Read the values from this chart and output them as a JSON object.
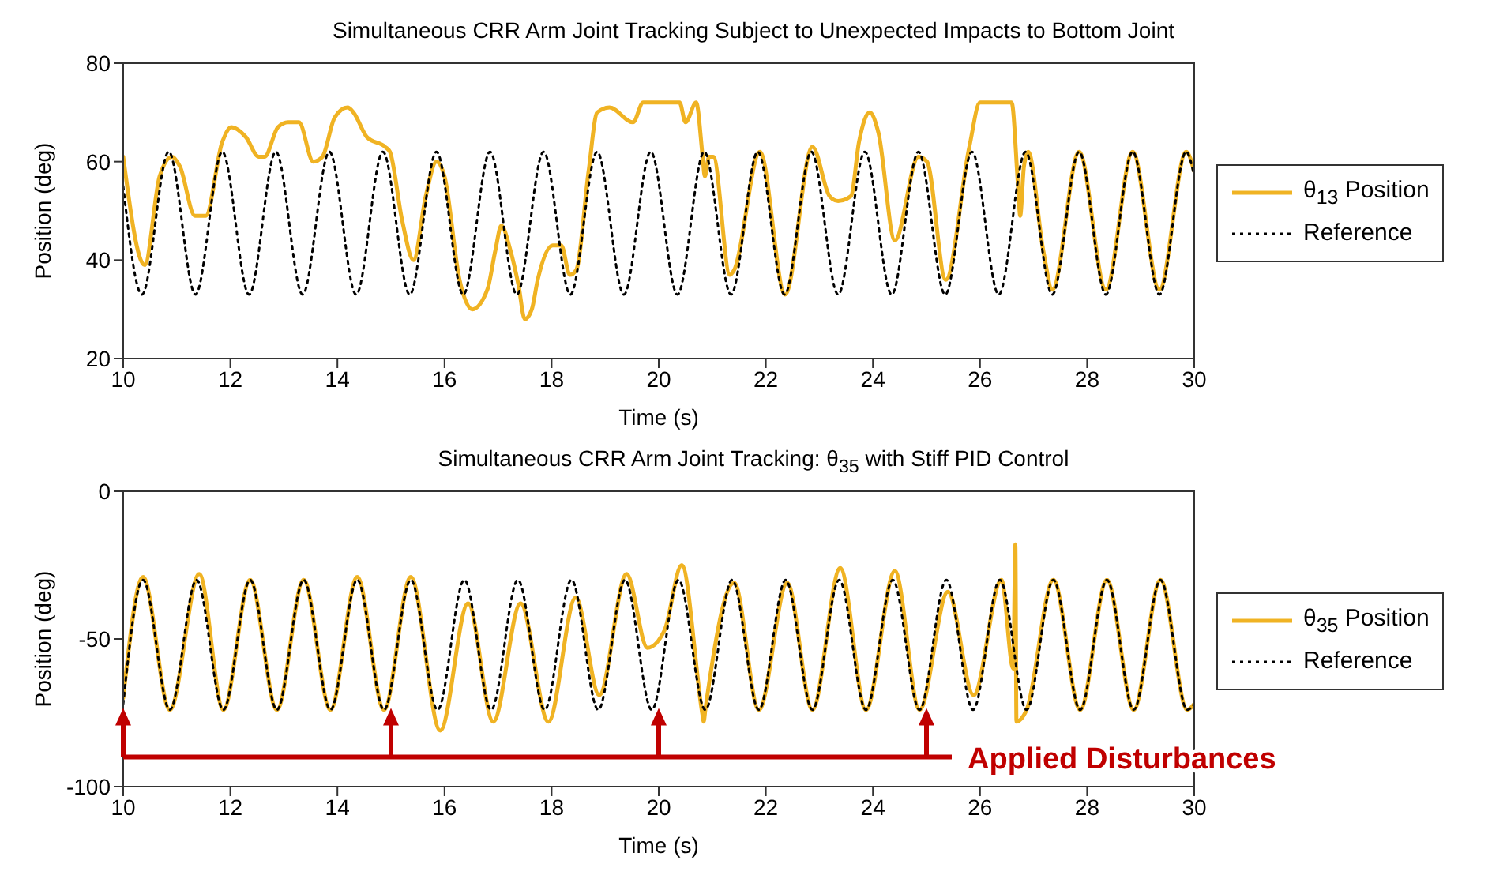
{
  "chart_data": [
    {
      "type": "line",
      "title": "Simultaneous CRR Arm Joint Tracking Subject to Unexpected Impacts to Bottom Joint",
      "xlabel": "Time (s)",
      "ylabel": "Position (deg)",
      "xlim": [
        10,
        30
      ],
      "xticks": [
        10,
        12,
        14,
        16,
        18,
        20,
        22,
        24,
        26,
        28,
        30
      ],
      "ylim": [
        20,
        80
      ],
      "yticks": [
        20,
        40,
        60,
        80
      ],
      "legend": "right",
      "series": [
        {
          "name": "θ$_{13}$ Position",
          "color": "#f0b323",
          "x": [
            10,
            10.4,
            10.68,
            10.91,
            11.06,
            11.34,
            11.54,
            11.85,
            12.02,
            12.29,
            12.53,
            12.64,
            12.89,
            13.08,
            13.28,
            13.55,
            13.72,
            13.95,
            14.19,
            14.3,
            14.55,
            14.89,
            14.98,
            15.21,
            15.42,
            15.65,
            15.85,
            16.0,
            16.28,
            16.52,
            16.8,
            16.95,
            17.06,
            17.23,
            17.38,
            17.5,
            17.63,
            17.74,
            18.02,
            18.18,
            18.34,
            18.46,
            18.69,
            18.85,
            19.08,
            19.52,
            19.71,
            20.39,
            20.5,
            20.7,
            20.82,
            20.86,
            20.94,
            21.02,
            21.33,
            21.41,
            21.89,
            22.36,
            22.87,
            23.19,
            23.35,
            23.59,
            23.74,
            23.94,
            24.1,
            24.41,
            24.85,
            25.01,
            25.36,
            25.8,
            26.0,
            26.59,
            26.71,
            26.75,
            26.82,
            26.9,
            27.18,
            27.35,
            27.85,
            28.35,
            28.85,
            29.35,
            29.85,
            30
          ],
          "values": [
            61,
            39,
            57,
            61,
            59,
            49,
            49,
            64,
            67,
            65,
            61,
            61,
            67,
            68,
            68,
            60,
            61,
            69,
            71,
            70,
            65,
            63,
            62,
            48,
            40,
            53,
            60,
            57,
            36,
            30,
            34,
            42,
            47,
            42,
            35,
            28,
            30,
            36,
            43,
            43,
            37,
            38,
            58,
            70,
            71,
            68,
            72,
            72,
            68,
            72,
            61,
            57,
            61,
            61,
            37,
            38,
            62,
            33,
            63,
            53,
            52,
            53,
            64,
            70,
            66,
            44,
            61,
            60,
            36,
            63,
            72,
            72,
            55,
            49,
            59,
            62,
            42,
            34,
            62,
            34,
            62,
            34,
            62,
            58
          ]
        },
        {
          "name": "Reference",
          "color": "#000000",
          "line_style": "dotted",
          "x": [
            10,
            10.35,
            10.85,
            11.35,
            11.85,
            12.35,
            12.85,
            13.35,
            13.85,
            14.35,
            14.85,
            15.35,
            15.85,
            16.35,
            16.85,
            17.35,
            17.85,
            18.35,
            18.85,
            19.35,
            19.85,
            20.35,
            20.85,
            21.35,
            21.85,
            22.35,
            22.85,
            23.35,
            23.85,
            24.35,
            24.85,
            25.35,
            25.85,
            26.35,
            26.85,
            27.35,
            27.85,
            28.35,
            28.85,
            29.35,
            29.85,
            30
          ],
          "values": [
            55,
            33,
            62,
            33,
            62,
            33,
            62,
            33,
            62,
            33,
            62,
            33,
            62,
            33,
            62,
            33,
            62,
            33,
            62,
            33,
            62,
            33,
            62,
            33,
            62,
            33,
            62,
            33,
            62,
            33,
            62,
            33,
            62,
            33,
            62,
            33,
            62,
            33,
            62,
            33,
            62,
            57
          ]
        }
      ]
    },
    {
      "type": "line",
      "title": "Simultaneous CRR Arm Joint Tracking: θ$_{35}$ with Stiff PID Control",
      "xlabel": "Time (s)",
      "ylabel": "Position (deg)",
      "xlim": [
        10,
        30
      ],
      "xticks": [
        10,
        12,
        14,
        16,
        18,
        20,
        22,
        24,
        26,
        28,
        30
      ],
      "ylim": [
        -100,
        0
      ],
      "yticks": [
        -100,
        -50,
        0
      ],
      "legend": "right",
      "annotations": [
        "Applied Disturbances"
      ],
      "series": [
        {
          "name": "θ$_{35}$ Position",
          "color": "#f0b323",
          "x": [
            10,
            10.37,
            10.87,
            11.42,
            11.87,
            12.37,
            12.87,
            13.37,
            13.87,
            14.37,
            14.87,
            15.37,
            15.92,
            16.44,
            16.91,
            17.42,
            17.94,
            18.45,
            18.89,
            19.4,
            19.79,
            20.11,
            20.43,
            20.82,
            20.84,
            20.87,
            21.41,
            21.87,
            22.4,
            22.87,
            23.39,
            23.87,
            24.41,
            24.87,
            25.4,
            25.88,
            26.4,
            26.62,
            26.66,
            26.68,
            26.87,
            27.37,
            27.87,
            28.37,
            28.87,
            29.37,
            29.87,
            30
          ],
          "values": [
            -70,
            -29,
            -74,
            -28,
            -74,
            -30,
            -74,
            -30,
            -74,
            -29,
            -74,
            -29,
            -81,
            -38,
            -78,
            -38,
            -78,
            -36,
            -69,
            -28,
            -53,
            -47,
            -25,
            -76,
            -78,
            -74,
            -31,
            -74,
            -31,
            -74,
            -26,
            -74,
            -27,
            -74,
            -34,
            -69,
            -30,
            -60,
            -18,
            -78,
            -74,
            -30,
            -74,
            -30,
            -74,
            -30,
            -74,
            -72
          ]
        },
        {
          "name": "Reference",
          "color": "#000000",
          "line_style": "dotted",
          "x": [
            10,
            10.37,
            10.87,
            11.37,
            11.87,
            12.37,
            12.87,
            13.37,
            13.87,
            14.37,
            14.87,
            15.37,
            15.87,
            16.37,
            16.87,
            17.37,
            17.87,
            18.37,
            18.87,
            19.37,
            19.87,
            20.37,
            20.87,
            21.37,
            21.87,
            22.37,
            22.87,
            23.37,
            23.87,
            24.37,
            24.87,
            25.37,
            25.87,
            26.37,
            26.87,
            27.37,
            27.87,
            28.37,
            28.87,
            29.37,
            29.87,
            30
          ],
          "values": [
            -72,
            -30,
            -74,
            -30,
            -74,
            -30,
            -74,
            -30,
            -74,
            -30,
            -74,
            -30,
            -74,
            -30,
            -74,
            -30,
            -74,
            -30,
            -74,
            -30,
            -74,
            -30,
            -74,
            -30,
            -74,
            -30,
            -74,
            -30,
            -74,
            -30,
            -74,
            -30,
            -74,
            -30,
            -74,
            -30,
            -74,
            -30,
            -74,
            -30,
            -74,
            -72
          ]
        }
      ]
    }
  ]
}
